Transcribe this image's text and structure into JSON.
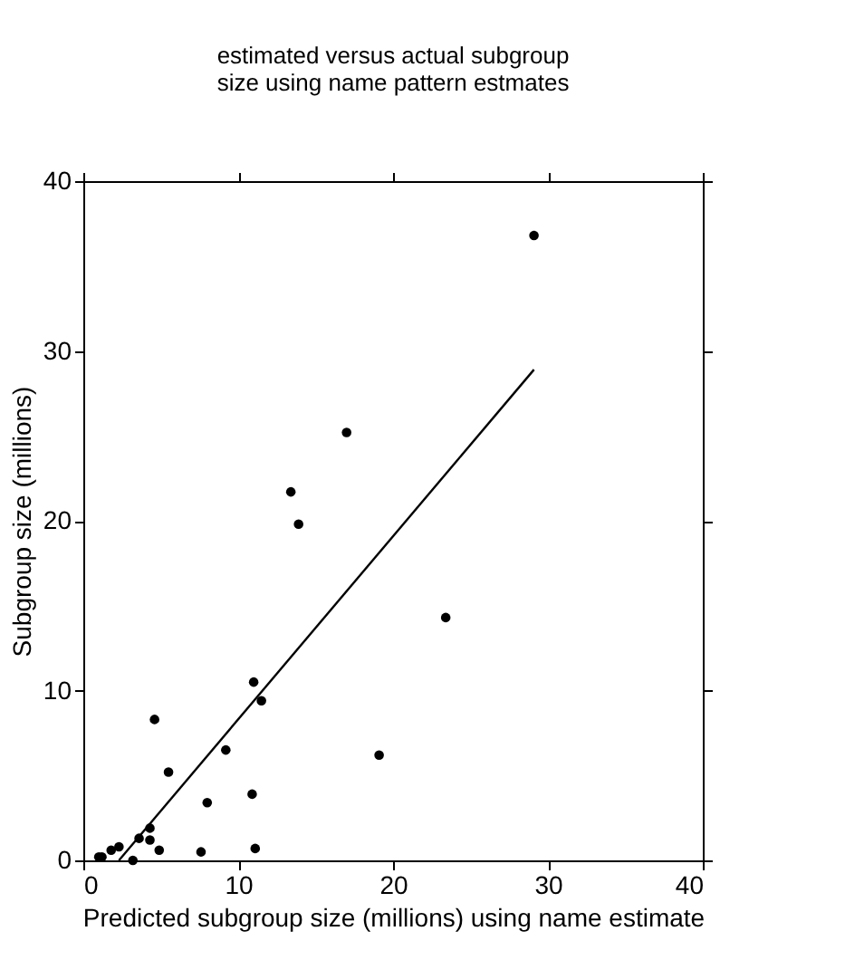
{
  "chart_data": {
    "type": "scatter",
    "title": [
      "estimated versus actual subgroup",
      "size using name pattern estmates"
    ],
    "xlabel": "Predicted subgroup size (millions) using name estimate",
    "ylabel": "Subgroup size (millions)",
    "xlim": [
      0,
      40
    ],
    "ylim": [
      0,
      40
    ],
    "xticks": [
      0,
      10,
      20,
      30,
      40
    ],
    "yticks": [
      0,
      10,
      20,
      30,
      40
    ],
    "series": [
      {
        "marker": "circle",
        "color": "#000000",
        "x": [
          29.1,
          17.0,
          13.4,
          13.9,
          23.4,
          11.0,
          11.5,
          4.6,
          9.2,
          19.1,
          5.5,
          8.0,
          10.9,
          4.3,
          3.6,
          4.3,
          4.9,
          7.6,
          11.1,
          3.2,
          2.3,
          1.8,
          1.2,
          1.0
        ],
        "values": [
          36.8,
          25.2,
          21.7,
          19.8,
          14.3,
          10.5,
          9.4,
          8.3,
          6.5,
          6.2,
          5.2,
          3.4,
          3.9,
          1.9,
          1.3,
          1.2,
          0.6,
          0.5,
          0.7,
          0.0,
          0.8,
          0.6,
          0.2,
          0.2
        ]
      },
      {
        "type": "line",
        "marker": "none",
        "color": "#000000",
        "x": [
          2.3,
          29.1
        ],
        "values": [
          0,
          28.9
        ]
      }
    ]
  }
}
